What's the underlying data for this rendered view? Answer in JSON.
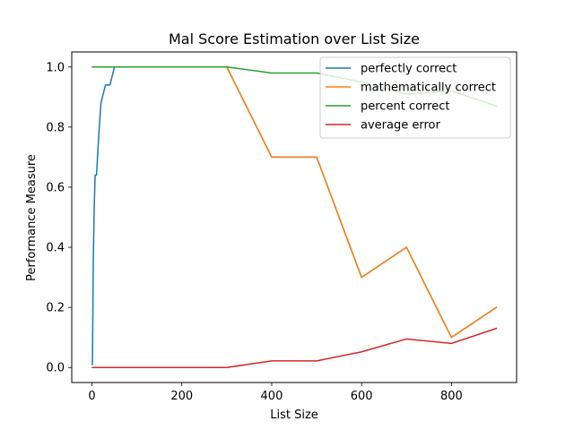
{
  "chart_data": {
    "type": "line",
    "title": "Mal Score Estimation over List Size",
    "xlabel": "List Size",
    "ylabel": "Performance Measure",
    "xlim": [
      -45,
      945
    ],
    "ylim": [
      -0.05,
      1.05
    ],
    "xticks": [
      0,
      200,
      400,
      600,
      800
    ],
    "yticks": [
      0.0,
      0.2,
      0.4,
      0.6,
      0.8,
      1.0
    ],
    "xtick_labels": [
      "0",
      "200",
      "400",
      "600",
      "800"
    ],
    "ytick_labels": [
      "0.0",
      "0.2",
      "0.4",
      "0.6",
      "0.8",
      "1.0"
    ],
    "grid": false,
    "legend_position": "top-right",
    "series": [
      {
        "name": "perfectly correct",
        "color": "#1f77b4",
        "x": [
          1,
          3,
          5,
          7,
          10,
          15,
          20,
          30,
          40,
          50,
          100,
          200,
          300,
          400,
          500,
          600,
          700,
          800,
          900
        ],
        "y": [
          0.01,
          0.36,
          0.53,
          0.64,
          0.64,
          0.77,
          0.88,
          0.94,
          0.94,
          1.0,
          1.0,
          1.0,
          1.0,
          0.7,
          0.7,
          0.3,
          0.4,
          0.1,
          0.2
        ]
      },
      {
        "name": "mathematically correct",
        "color": "#ff7f0e",
        "x": [
          1,
          50,
          100,
          200,
          300,
          400,
          500,
          600,
          700,
          800,
          900
        ],
        "y": [
          1.0,
          1.0,
          1.0,
          1.0,
          1.0,
          0.7,
          0.7,
          0.3,
          0.4,
          0.1,
          0.2
        ]
      },
      {
        "name": "percent correct",
        "color": "#2ca02c",
        "x": [
          1,
          50,
          100,
          200,
          300,
          400,
          500,
          600,
          700,
          800,
          900
        ],
        "y": [
          1.0,
          1.0,
          1.0,
          1.0,
          1.0,
          0.98,
          0.98,
          0.95,
          0.91,
          0.92,
          0.87
        ]
      },
      {
        "name": "average error",
        "color": "#d62728",
        "x": [
          1,
          50,
          100,
          200,
          300,
          400,
          500,
          600,
          700,
          800,
          900
        ],
        "y": [
          0.0,
          0.0,
          0.0,
          0.0,
          0.0,
          0.022,
          0.022,
          0.052,
          0.095,
          0.08,
          0.13
        ]
      }
    ]
  }
}
